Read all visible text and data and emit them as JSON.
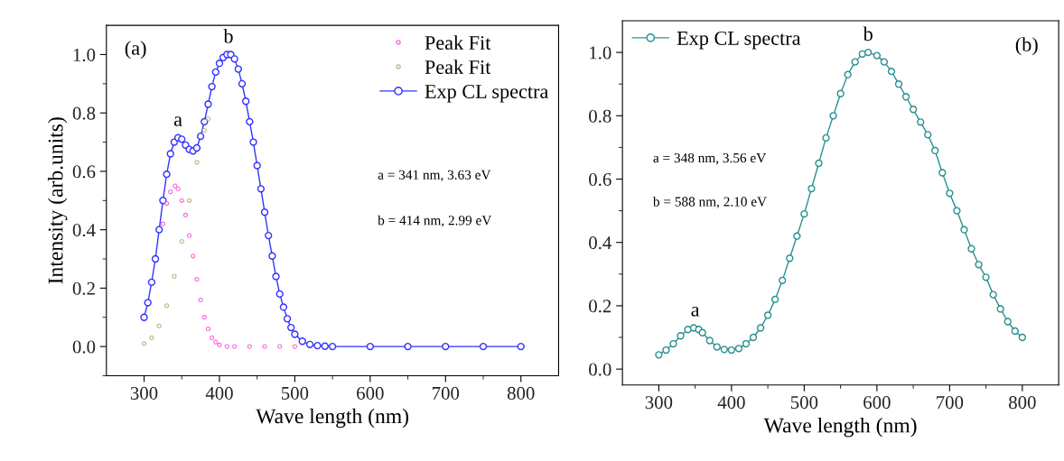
{
  "chart_data": [
    {
      "type": "line",
      "xlabel": "Wave length (nm)",
      "ylabel": "Intensity (arb.units)",
      "xlim": [
        250,
        850
      ],
      "ylim": [
        -0.1,
        1.1
      ],
      "xticks": [
        300,
        {
          "value": 350,
          "label": null
        },
        400,
        {
          "value": 450,
          "label": null
        },
        500,
        {
          "value": 550,
          "label": null
        },
        600,
        {
          "value": 650,
          "label": null
        },
        700,
        {
          "value": 750,
          "label": null
        },
        800
      ],
      "yticks": [
        {
          "value": -0.1,
          "label": null
        },
        {
          "value": 0,
          "label": "0.0"
        },
        {
          "value": 0.1,
          "label": null
        },
        0.2,
        {
          "value": 0.3,
          "label": null
        },
        0.4,
        {
          "value": 0.5,
          "label": null
        },
        0.6,
        {
          "value": 0.7,
          "label": null
        },
        0.8,
        {
          "value": 0.9,
          "label": null
        },
        {
          "value": 1,
          "label": "1.0"
        }
      ],
      "legend": "top right",
      "marker": "circle",
      "grid": false,
      "annotations": [
        "(a)",
        "a = 341 nm, 3.63 eV",
        "b = 414 nm, 2.99 eV",
        {
          "text": "a",
          "x": 345,
          "y": 0.715
        },
        {
          "text": "b",
          "x": 412,
          "y": 1.0
        }
      ],
      "series": [
        {
          "name": "Peak Fit",
          "type": "scatter",
          "color": "#ff66dd",
          "x": [
            325,
            330,
            335,
            341,
            345,
            350,
            355,
            360,
            365,
            370,
            375,
            380,
            385,
            390,
            395,
            400,
            410,
            420,
            440,
            460,
            480,
            500
          ],
          "values": [
            0.42,
            0.49,
            0.53,
            0.55,
            0.54,
            0.5,
            0.45,
            0.38,
            0.31,
            0.23,
            0.16,
            0.1,
            0.06,
            0.03,
            0.015,
            0.005,
            0,
            0,
            0,
            0,
            0,
            0
          ]
        },
        {
          "name": "Peak Fit",
          "type": "scatter",
          "color": "#b8b88c",
          "x": [
            300,
            310,
            320,
            330,
            340,
            350,
            360,
            370,
            380,
            385
          ],
          "values": [
            0.01,
            0.03,
            0.07,
            0.14,
            0.24,
            0.36,
            0.5,
            0.63,
            0.74,
            0.78
          ]
        },
        {
          "name": "Exp CL spectra",
          "color": "#3333ff",
          "x": [
            300,
            305,
            310,
            315,
            320,
            325,
            330,
            335,
            340,
            345,
            350,
            355,
            360,
            365,
            370,
            375,
            380,
            385,
            390,
            395,
            400,
            405,
            410,
            415,
            420,
            425,
            430,
            435,
            440,
            445,
            450,
            455,
            460,
            465,
            470,
            475,
            480,
            485,
            490,
            495,
            500,
            510,
            520,
            530,
            540,
            550,
            600,
            650,
            700,
            750,
            800
          ],
          "values": [
            0.1,
            0.15,
            0.22,
            0.3,
            0.4,
            0.5,
            0.59,
            0.66,
            0.7,
            0.715,
            0.71,
            0.69,
            0.675,
            0.67,
            0.68,
            0.72,
            0.77,
            0.83,
            0.89,
            0.94,
            0.97,
            0.99,
            1.0,
            1.0,
            0.985,
            0.95,
            0.9,
            0.84,
            0.77,
            0.7,
            0.62,
            0.54,
            0.46,
            0.38,
            0.31,
            0.24,
            0.18,
            0.135,
            0.095,
            0.065,
            0.042,
            0.018,
            0.007,
            0.003,
            0.001,
            0,
            0,
            0,
            0,
            0,
            0
          ]
        }
      ]
    },
    {
      "type": "line",
      "xlabel": "Wave length (nm)",
      "xlim": [
        250,
        850
      ],
      "ylim": [
        -0.05,
        1.1
      ],
      "xticks": [
        300,
        {
          "value": 350,
          "label": null
        },
        400,
        {
          "value": 450,
          "label": null
        },
        500,
        {
          "value": 550,
          "label": null
        },
        600,
        {
          "value": 650,
          "label": null
        },
        700,
        {
          "value": 750,
          "label": null
        },
        800
      ],
      "yticks": [
        {
          "value": 0,
          "label": "0.0"
        },
        {
          "value": 0.1,
          "label": null
        },
        0.2,
        {
          "value": 0.3,
          "label": null
        },
        0.4,
        {
          "value": 0.5,
          "label": null
        },
        0.6,
        {
          "value": 0.7,
          "label": null
        },
        0.8,
        {
          "value": 0.9,
          "label": null
        },
        {
          "value": 1,
          "label": "1.0"
        }
      ],
      "legend": "top left",
      "marker": "circle",
      "grid": false,
      "annotations": [
        "(b)",
        "a = 348 nm, 3.56 eV",
        "b = 588 nm, 2.10 eV",
        {
          "text": "a",
          "x": 350,
          "y": 0.13
        },
        {
          "text": "b",
          "x": 588,
          "y": 1.0
        }
      ],
      "series": [
        {
          "name": "Exp CL spectra",
          "color": "#2a9090",
          "x": [
            300,
            310,
            320,
            330,
            340,
            348,
            355,
            360,
            370,
            380,
            390,
            400,
            410,
            420,
            430,
            440,
            450,
            460,
            470,
            480,
            490,
            500,
            510,
            520,
            530,
            540,
            550,
            560,
            570,
            580,
            588,
            600,
            610,
            620,
            630,
            640,
            650,
            660,
            670,
            680,
            690,
            700,
            710,
            720,
            730,
            740,
            750,
            760,
            770,
            780,
            790,
            800
          ],
          "values": [
            0.045,
            0.06,
            0.08,
            0.105,
            0.125,
            0.13,
            0.125,
            0.115,
            0.09,
            0.07,
            0.062,
            0.06,
            0.065,
            0.08,
            0.1,
            0.13,
            0.17,
            0.22,
            0.28,
            0.35,
            0.42,
            0.49,
            0.57,
            0.65,
            0.73,
            0.8,
            0.87,
            0.93,
            0.97,
            0.995,
            1.0,
            0.99,
            0.97,
            0.94,
            0.9,
            0.86,
            0.82,
            0.78,
            0.74,
            0.69,
            0.62,
            0.555,
            0.5,
            0.44,
            0.38,
            0.33,
            0.29,
            0.235,
            0.19,
            0.15,
            0.12,
            0.1
          ]
        }
      ]
    }
  ]
}
